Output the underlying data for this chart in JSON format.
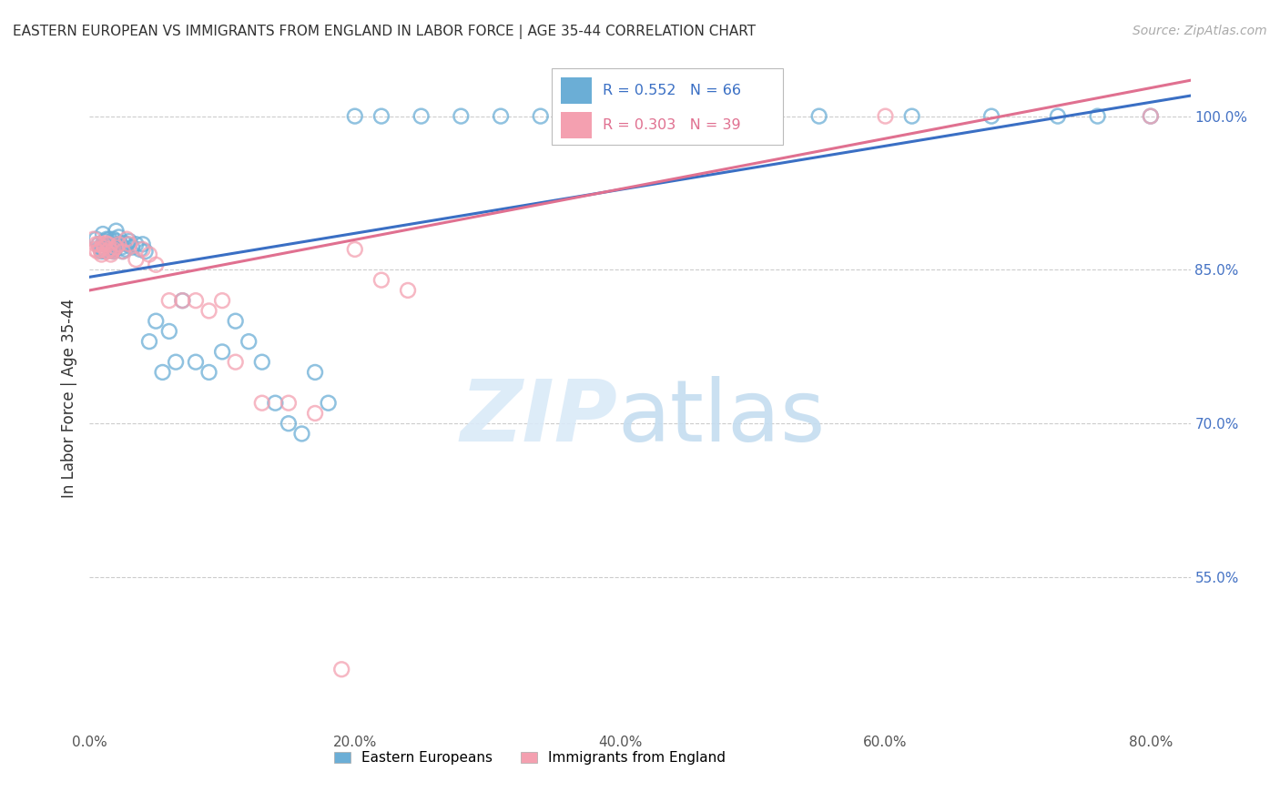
{
  "title": "EASTERN EUROPEAN VS IMMIGRANTS FROM ENGLAND IN LABOR FORCE | AGE 35-44 CORRELATION CHART",
  "source": "Source: ZipAtlas.com",
  "xlabel_ticks": [
    "0.0%",
    "20.0%",
    "40.0%",
    "60.0%",
    "80.0%"
  ],
  "xlabel_tick_vals": [
    0.0,
    0.2,
    0.4,
    0.6,
    0.8
  ],
  "ylabel_ticks": [
    "55.0%",
    "70.0%",
    "85.0%",
    "100.0%"
  ],
  "ylabel_tick_vals": [
    0.55,
    0.7,
    0.85,
    1.0
  ],
  "xlim": [
    0.0,
    0.83
  ],
  "ylim": [
    0.4,
    1.05
  ],
  "ylabel": "In Labor Force | Age 35-44",
  "legend_label1": "Eastern Europeans",
  "legend_label2": "Immigrants from England",
  "R1": 0.552,
  "N1": 66,
  "R2": 0.303,
  "N2": 39,
  "color_blue": "#6baed6",
  "color_pink": "#f4a0b0",
  "color_blue_line": "#3a6fc4",
  "color_pink_line": "#e07090",
  "blue_x": [
    0.005,
    0.007,
    0.008,
    0.009,
    0.01,
    0.01,
    0.011,
    0.012,
    0.013,
    0.014,
    0.015,
    0.015,
    0.016,
    0.017,
    0.018,
    0.018,
    0.019,
    0.02,
    0.02,
    0.021,
    0.022,
    0.023,
    0.024,
    0.025,
    0.026,
    0.027,
    0.028,
    0.03,
    0.032,
    0.035,
    0.038,
    0.04,
    0.042,
    0.045,
    0.05,
    0.055,
    0.06,
    0.065,
    0.07,
    0.08,
    0.09,
    0.1,
    0.11,
    0.12,
    0.13,
    0.14,
    0.15,
    0.16,
    0.17,
    0.18,
    0.2,
    0.22,
    0.25,
    0.28,
    0.31,
    0.34,
    0.37,
    0.4,
    0.45,
    0.5,
    0.55,
    0.62,
    0.68,
    0.73,
    0.76,
    0.8
  ],
  "blue_y": [
    0.88,
    0.875,
    0.872,
    0.868,
    0.885,
    0.87,
    0.878,
    0.868,
    0.88,
    0.875,
    0.872,
    0.88,
    0.875,
    0.87,
    0.868,
    0.88,
    0.87,
    0.888,
    0.878,
    0.875,
    0.882,
    0.876,
    0.872,
    0.868,
    0.876,
    0.87,
    0.875,
    0.878,
    0.872,
    0.875,
    0.87,
    0.875,
    0.868,
    0.78,
    0.8,
    0.75,
    0.79,
    0.76,
    0.82,
    0.76,
    0.75,
    0.77,
    0.8,
    0.78,
    0.76,
    0.72,
    0.7,
    0.69,
    0.75,
    0.72,
    1.0,
    1.0,
    1.0,
    1.0,
    1.0,
    1.0,
    1.0,
    1.0,
    1.0,
    1.0,
    1.0,
    1.0,
    1.0,
    1.0,
    1.0,
    1.0
  ],
  "pink_x": [
    0.003,
    0.004,
    0.005,
    0.006,
    0.007,
    0.008,
    0.009,
    0.01,
    0.011,
    0.012,
    0.013,
    0.014,
    0.015,
    0.016,
    0.017,
    0.018,
    0.02,
    0.022,
    0.025,
    0.028,
    0.03,
    0.035,
    0.04,
    0.045,
    0.05,
    0.06,
    0.07,
    0.08,
    0.09,
    0.1,
    0.11,
    0.13,
    0.15,
    0.17,
    0.2,
    0.22,
    0.24,
    0.6,
    0.8
  ],
  "pink_y": [
    0.88,
    0.87,
    0.875,
    0.868,
    0.875,
    0.87,
    0.865,
    0.875,
    0.872,
    0.876,
    0.868,
    0.875,
    0.87,
    0.865,
    0.868,
    0.87,
    0.872,
    0.875,
    0.868,
    0.88,
    0.875,
    0.86,
    0.87,
    0.865,
    0.855,
    0.82,
    0.82,
    0.82,
    0.81,
    0.82,
    0.76,
    0.72,
    0.72,
    0.71,
    0.87,
    0.84,
    0.83,
    1.0,
    1.0
  ],
  "pink_outlier_x": [
    0.19
  ],
  "pink_outlier_y": [
    0.46
  ],
  "blue_line_x": [
    0.0,
    0.83
  ],
  "blue_line_y": [
    0.843,
    1.02
  ],
  "pink_line_x": [
    0.0,
    0.83
  ],
  "pink_line_y": [
    0.83,
    1.035
  ]
}
